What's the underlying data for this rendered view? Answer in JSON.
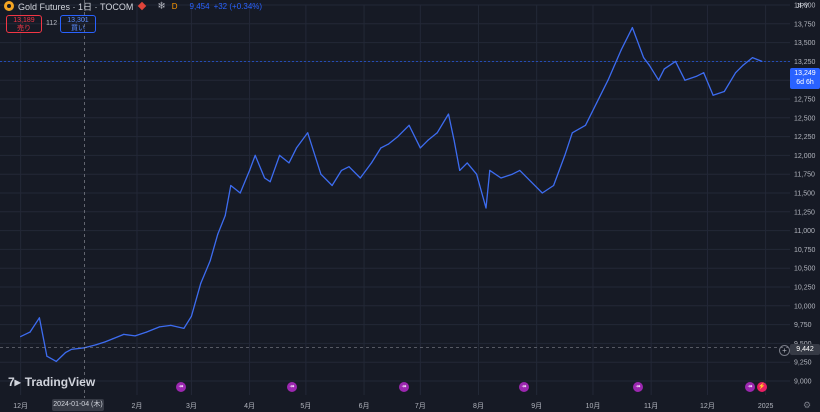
{
  "header": {
    "title": "Gold Futures · 1日 · TOCOM",
    "interval_badge": "D",
    "prev_value": "9,454",
    "change": "+32 (+0.34%)"
  },
  "quote": {
    "sell_price": "13,189",
    "sell_label": "売り",
    "spread": "112",
    "buy_price": "13,301",
    "buy_label": "買い"
  },
  "currency": "JPY",
  "last_price": {
    "value": "13,249",
    "countdown": "6d 6h"
  },
  "crosshair": {
    "price": "9,442",
    "date": "2024-01-04 (木)"
  },
  "branding": "TradingView",
  "colors": {
    "line": "#3d6cf0",
    "background": "#161a25",
    "grid": "#232837",
    "last": "#2962ff"
  },
  "chart_data": {
    "type": "line",
    "series": [
      {
        "x": [
          "2023-12-01",
          "2023-12-06",
          "2023-12-11",
          "2023-12-15",
          "2023-12-20",
          "2023-12-25",
          "2023-12-28",
          "2024-01-04",
          "2024-01-10",
          "2024-01-15",
          "2024-01-19",
          "2024-01-25",
          "2024-01-31",
          "2024-02-06",
          "2024-02-13",
          "2024-02-19",
          "2024-02-26",
          "2024-03-01",
          "2024-03-06",
          "2024-03-11",
          "2024-03-15",
          "2024-03-19",
          "2024-03-22",
          "2024-03-27",
          "2024-04-01",
          "2024-04-04",
          "2024-04-09",
          "2024-04-12",
          "2024-04-17",
          "2024-04-22",
          "2024-04-26",
          "2024-05-02",
          "2024-05-09",
          "2024-05-15",
          "2024-05-20",
          "2024-05-24",
          "2024-05-30",
          "2024-06-05",
          "2024-06-10",
          "2024-06-14",
          "2024-06-19",
          "2024-06-25",
          "2024-07-01",
          "2024-07-05",
          "2024-07-10",
          "2024-07-16",
          "2024-07-19",
          "2024-07-22",
          "2024-07-26",
          "2024-07-31",
          "2024-08-05",
          "2024-08-07",
          "2024-08-13",
          "2024-08-19",
          "2024-08-23",
          "2024-08-29",
          "2024-09-04",
          "2024-09-10",
          "2024-09-16",
          "2024-09-20",
          "2024-09-27",
          "2024-10-03",
          "2024-10-09",
          "2024-10-16",
          "2024-10-22",
          "2024-10-28",
          "2024-10-31",
          "2024-11-05",
          "2024-11-08",
          "2024-11-14",
          "2024-11-19",
          "2024-11-25",
          "2024-11-29",
          "2024-12-04",
          "2024-12-10",
          "2024-12-16",
          "2024-12-20",
          "2024-12-25",
          "2024-12-30"
        ],
        "y": [
          9590,
          9650,
          9840,
          9330,
          9260,
          9380,
          9420,
          9442,
          9480,
          9520,
          9560,
          9620,
          9600,
          9650,
          9720,
          9740,
          9700,
          9860,
          10300,
          10600,
          10950,
          11200,
          11600,
          11500,
          11800,
          12000,
          11700,
          11650,
          12000,
          11900,
          12100,
          12300,
          11750,
          11600,
          11800,
          11850,
          11700,
          11900,
          12100,
          12150,
          12250,
          12400,
          12100,
          12200,
          12300,
          12550,
          12200,
          11800,
          11900,
          11750,
          11300,
          11800,
          11700,
          11750,
          11800,
          11650,
          11500,
          11600,
          12000,
          12300,
          12400,
          12700,
          13000,
          13400,
          13700,
          13300,
          13200,
          13000,
          13150,
          13250,
          13000,
          13050,
          13100,
          12800,
          12850,
          13100,
          13200,
          13300,
          13250
        ]
      }
    ],
    "ylim": [
      9000,
      14000
    ],
    "y_ticks": [
      "9,000",
      "9,250",
      "9,500",
      "9,750",
      "10,000",
      "10,250",
      "10,500",
      "10,750",
      "11,000",
      "11,250",
      "11,500",
      "11,750",
      "12,000",
      "12,250",
      "12,500",
      "12,750",
      "13,000",
      "13,250",
      "13,500",
      "13,750",
      "14,000"
    ],
    "x_ticks": [
      "12月",
      "2月",
      "3月",
      "4月",
      "5月",
      "6月",
      "7月",
      "8月",
      "9月",
      "10月",
      "11月",
      "12月",
      "2025"
    ],
    "grid": true
  }
}
